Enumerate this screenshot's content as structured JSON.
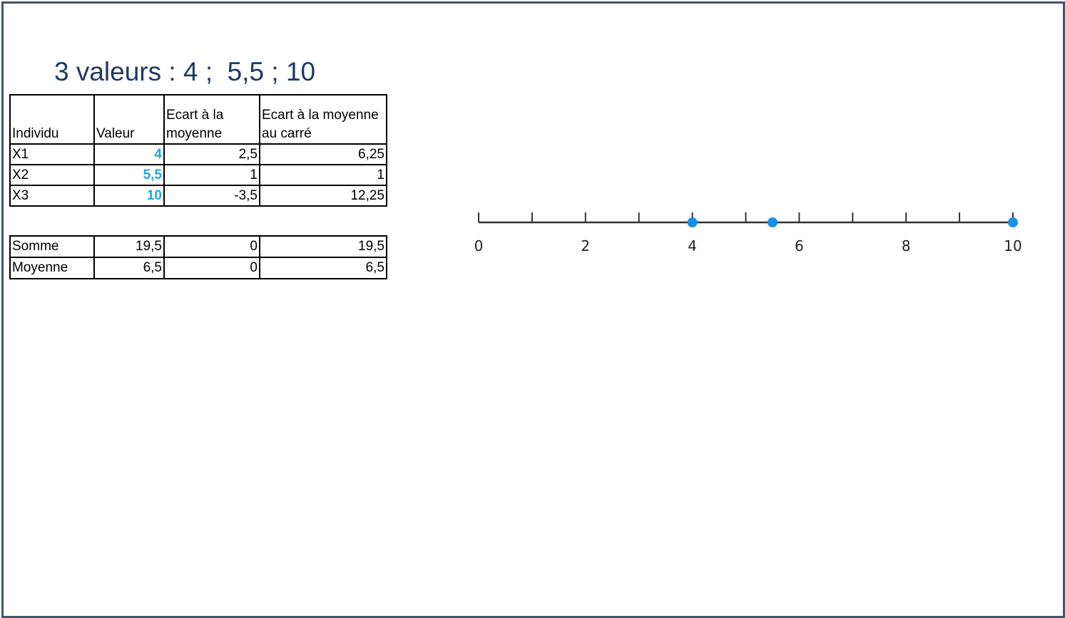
{
  "title": "3 valeurs : 4 ;  5,5 ; 10",
  "table": {
    "headers": [
      "Individu",
      "Valeur",
      "Ecart à la moyenne",
      "Ecart à la moyenne au carré"
    ],
    "rows": [
      [
        "X1",
        "4",
        "2,5",
        "6,25"
      ],
      [
        "X2",
        "5,5",
        "1",
        "1"
      ],
      [
        "X3",
        "10",
        "-3,5",
        "12,25"
      ]
    ]
  },
  "summary": {
    "rows": [
      [
        "Somme",
        "19,5",
        "0",
        "19,5"
      ],
      [
        "Moyenne",
        "6,5",
        "0",
        "6,5"
      ]
    ]
  },
  "number_line": {
    "min": 0,
    "max": 10,
    "minor_step": 1,
    "labels": [
      "0",
      "2",
      "4",
      "6",
      "8",
      "10"
    ],
    "label_values": [
      0,
      2,
      4,
      6,
      8,
      10
    ],
    "points": [
      4,
      5.5,
      10
    ],
    "point_color": "#1a8fe3",
    "line_color": "#333333"
  },
  "colors": {
    "title": "#1f3864",
    "value_highlight": "#1fa7e0",
    "frame": "#44546a"
  }
}
